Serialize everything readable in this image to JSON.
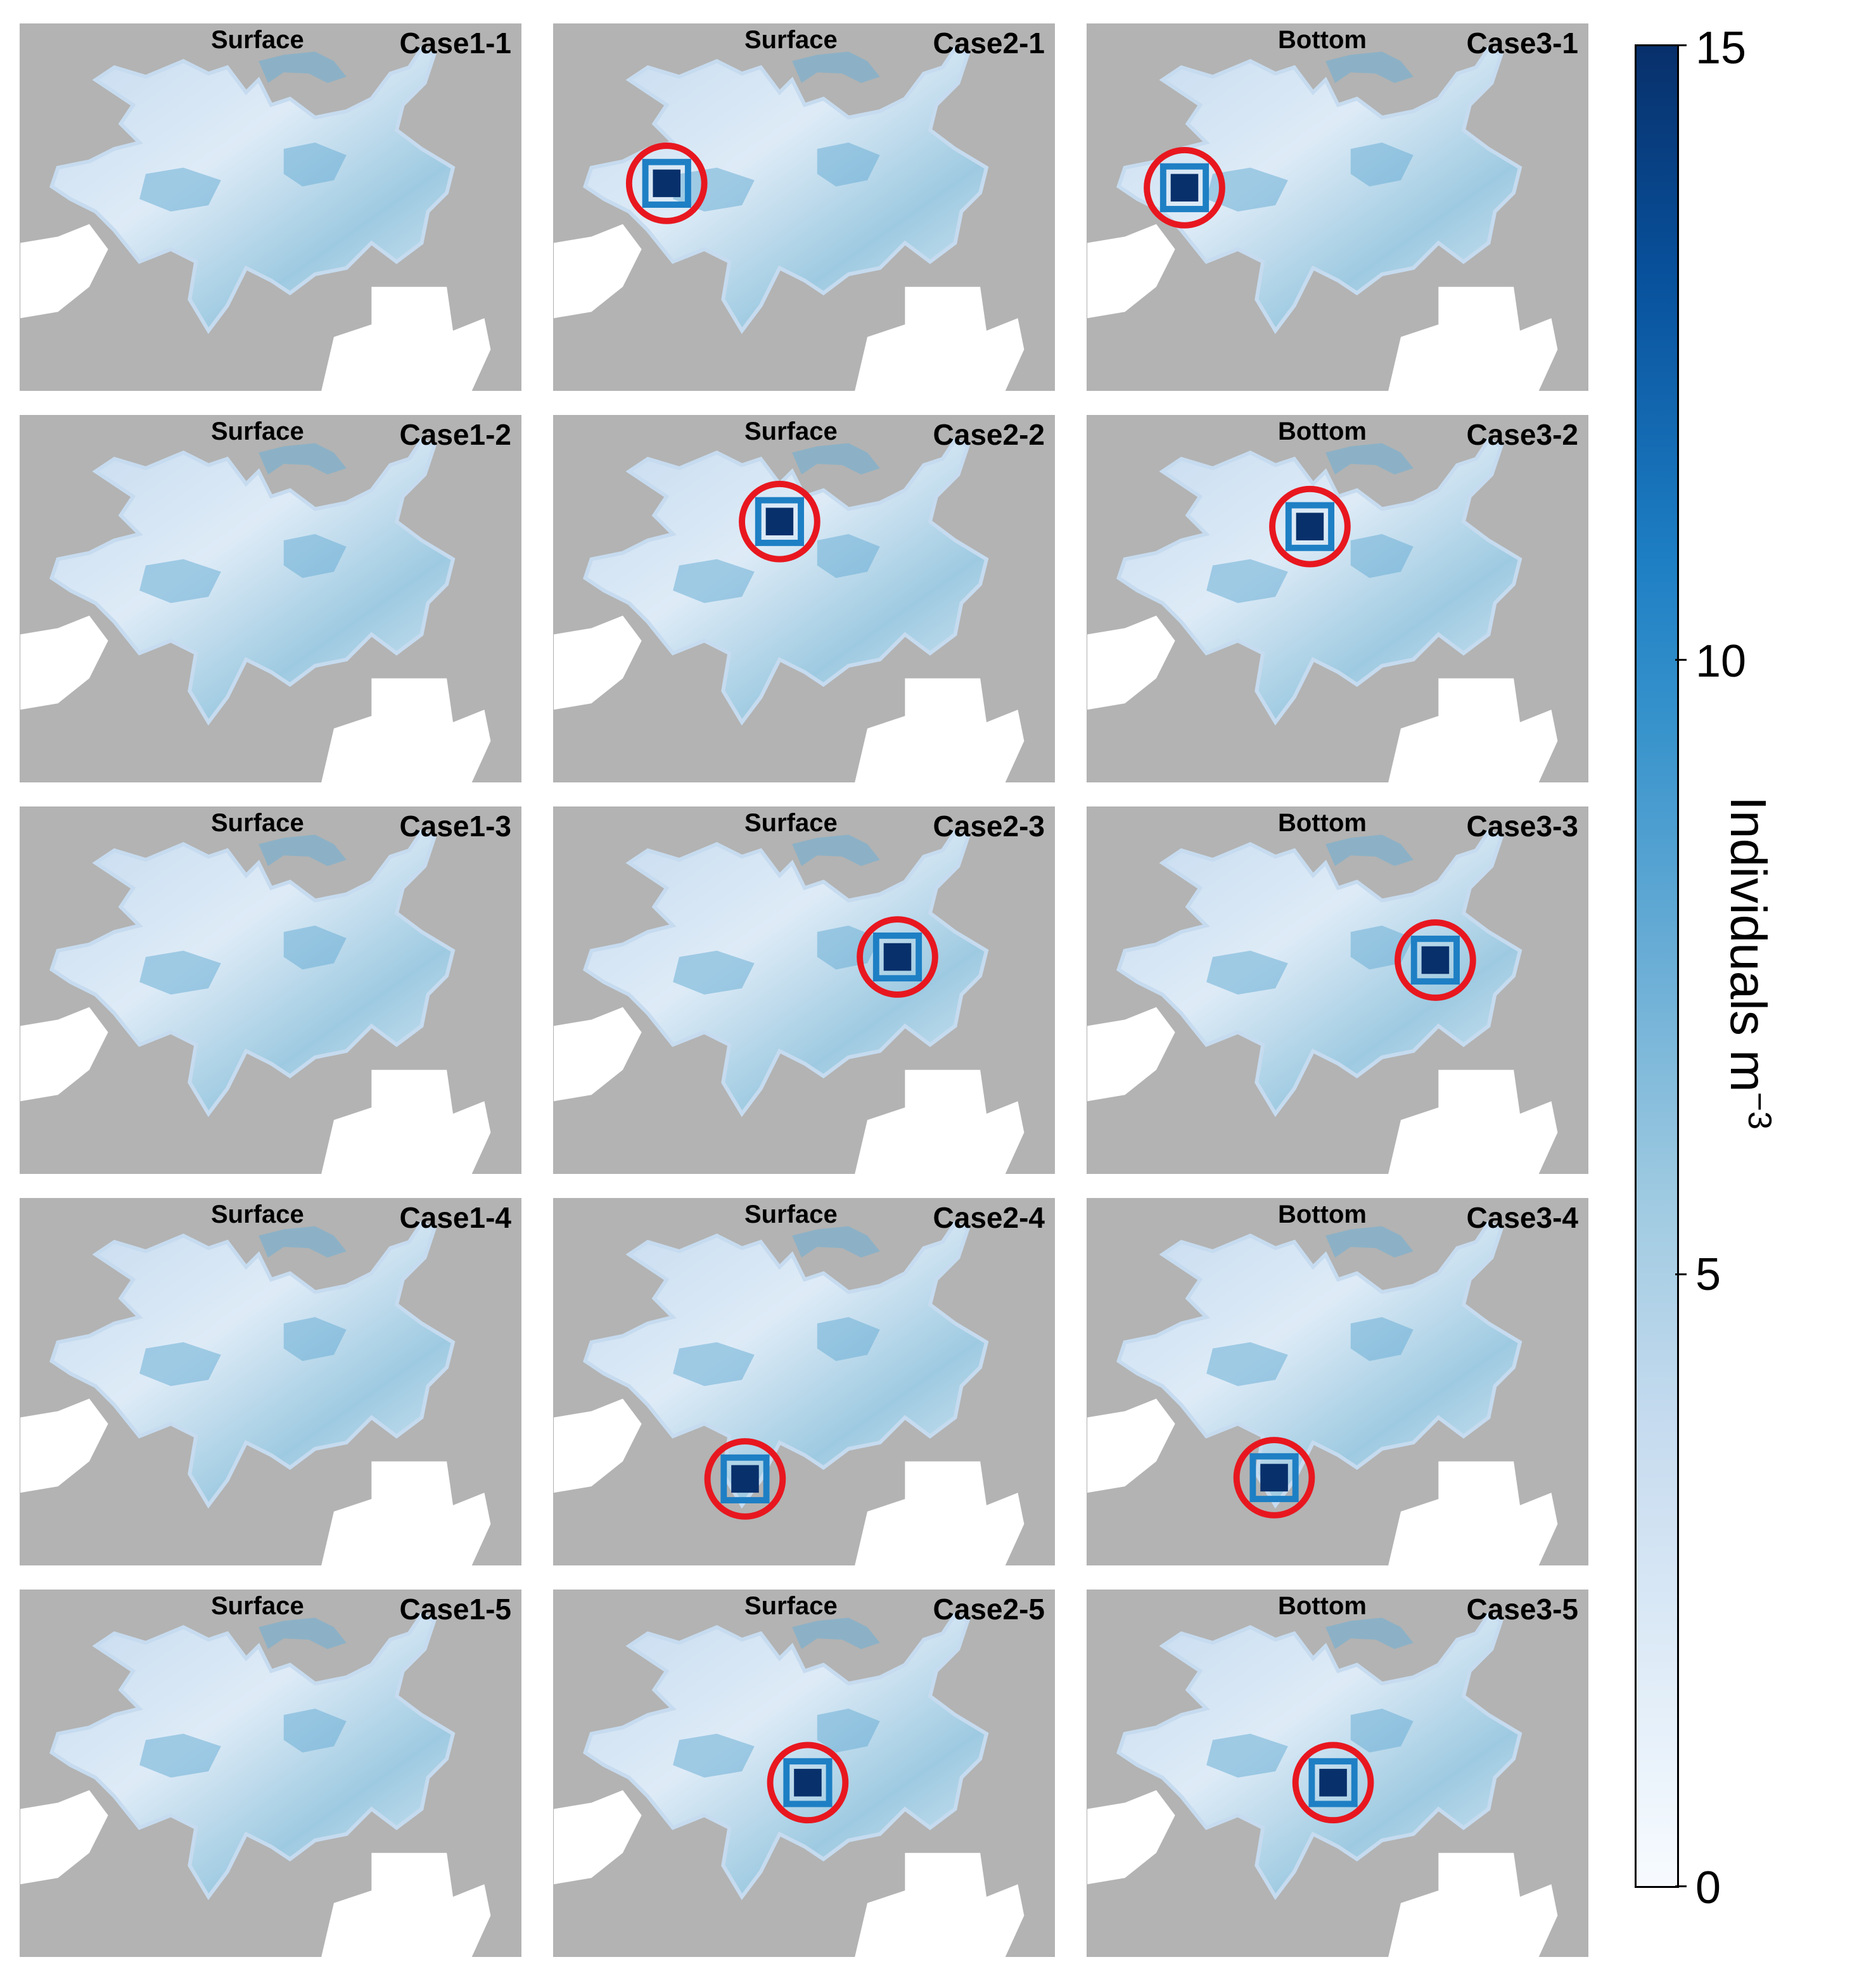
{
  "chart_data": {
    "type": "heatmap",
    "layout": {
      "rows": 5,
      "columns": 3
    },
    "colorbar": {
      "label": "Individuals m",
      "label_exponent": "−3",
      "range": [
        0,
        15
      ],
      "ticks": [
        0,
        5,
        10,
        15
      ],
      "colors": [
        "#f7fbff",
        "#deebf7",
        "#c6dbef",
        "#9ecae1",
        "#6baed6",
        "#3994cc",
        "#1e7fc4",
        "#08519c",
        "#08306b"
      ]
    },
    "colors": {
      "land": "#b3b3b3",
      "marker": "#e8171f"
    },
    "panels": [
      {
        "case": "Case1-1",
        "layer": "Surface",
        "hotspot": null
      },
      {
        "case": "Case2-1",
        "layer": "Surface",
        "hotspot": "west"
      },
      {
        "case": "Case3-1",
        "layer": "Bottom",
        "hotspot": "west"
      },
      {
        "case": "Case1-2",
        "layer": "Surface",
        "hotspot": null
      },
      {
        "case": "Case2-2",
        "layer": "Surface",
        "hotspot": "north-central"
      },
      {
        "case": "Case3-2",
        "layer": "Bottom",
        "hotspot": "north-central"
      },
      {
        "case": "Case1-3",
        "layer": "Surface",
        "hotspot": null
      },
      {
        "case": "Case2-3",
        "layer": "Surface",
        "hotspot": "east"
      },
      {
        "case": "Case3-3",
        "layer": "Bottom",
        "hotspot": "east"
      },
      {
        "case": "Case1-4",
        "layer": "Surface",
        "hotspot": null
      },
      {
        "case": "Case2-4",
        "layer": "Surface",
        "hotspot": "south"
      },
      {
        "case": "Case3-4",
        "layer": "Bottom",
        "hotspot": "south"
      },
      {
        "case": "Case1-5",
        "layer": "Surface",
        "hotspot": null
      },
      {
        "case": "Case2-5",
        "layer": "Surface",
        "hotspot": "central"
      },
      {
        "case": "Case3-5",
        "layer": "Bottom",
        "hotspot": "central"
      }
    ]
  }
}
